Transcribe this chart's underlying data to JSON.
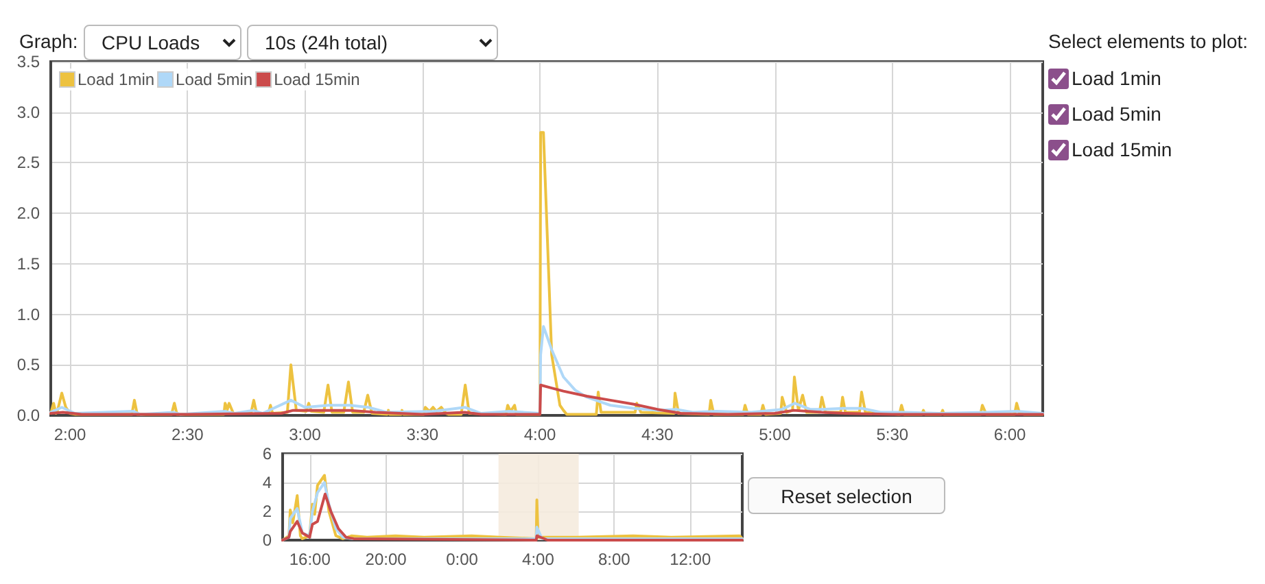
{
  "chart_data": [
    {
      "type": "line",
      "legend": "top left",
      "grid": true,
      "marker": "none",
      "xlim": [
        1.918,
        6.14
      ],
      "xticks": [
        {
          "value": 2,
          "label": "2:00"
        },
        {
          "value": 2.5,
          "label": "2:30"
        },
        {
          "value": 3,
          "label": "3:00"
        },
        {
          "value": 3.5,
          "label": "3:30"
        },
        {
          "value": 4,
          "label": "4:00"
        },
        {
          "value": 4.5,
          "label": "4:30"
        },
        {
          "value": 5,
          "label": "5:00"
        },
        {
          "value": 5.5,
          "label": "5:30"
        },
        {
          "value": 6,
          "label": "6:00"
        }
      ],
      "ylim": [
        0,
        3.5
      ],
      "yticks": [
        {
          "value": 0,
          "label": "0.0"
        },
        0.5,
        {
          "value": 1,
          "label": "1.0"
        },
        1.5,
        {
          "value": 2,
          "label": "2.0"
        },
        2.5,
        {
          "value": 3,
          "label": "3.0"
        },
        3.5
      ],
      "series": [
        {
          "name": "Load 1min",
          "color": "#edc240",
          "x": [
            1.918,
            1.93,
            1.94,
            1.947,
            1.965,
            1.982,
            2.0,
            2.023,
            2.263,
            2.274,
            2.286,
            2.432,
            2.444,
            2.455,
            2.655,
            2.66,
            2.67,
            2.677,
            2.695,
            2.77,
            2.782,
            2.794,
            2.845,
            2.853,
            2.862,
            2.925,
            2.94,
            2.963,
            3.005,
            3.016,
            3.027,
            3.08,
            3.098,
            3.115,
            3.165,
            3.185,
            3.203,
            3.25,
            3.267,
            3.285,
            3.35,
            3.355,
            3.36,
            3.41,
            3.413,
            3.42,
            3.505,
            3.512,
            3.53,
            3.545,
            3.559,
            3.58,
            3.6,
            3.612,
            3.665,
            3.682,
            3.699,
            3.855,
            3.863,
            3.875,
            3.892,
            3.9,
            4.0,
            4.003,
            4.015,
            4.05,
            4.085,
            4.1,
            4.114,
            4.24,
            4.248,
            4.26,
            4.405,
            4.412,
            4.43,
            4.57,
            4.575,
            4.59,
            4.72,
            4.727,
            4.74,
            4.865,
            4.873,
            4.885,
            4.94,
            4.949,
            4.96,
            5.025,
            5.031,
            5.05,
            5.075,
            5.083,
            5.1,
            5.118,
            5.135,
            5.19,
            5.2,
            5.215,
            5.28,
            5.288,
            5.3,
            5.36,
            5.369,
            5.385,
            5.53,
            5.539,
            5.55,
            5.625,
            5.632,
            5.64,
            5.707,
            5.714,
            5.72,
            5.875,
            5.883,
            5.9,
            6.02,
            6.029,
            6.04,
            6.06,
            6.14
          ],
          "values": [
            0.02,
            0.12,
            0.02,
            0.05,
            0.22,
            0.08,
            0.02,
            0.01,
            0.01,
            0.15,
            0.01,
            0.01,
            0.12,
            0.01,
            0.01,
            0.12,
            0.06,
            0.12,
            0.02,
            0.02,
            0.15,
            0.02,
            0.02,
            0.1,
            0.02,
            0.03,
            0.5,
            0.05,
            0.04,
            0.12,
            0.04,
            0.03,
            0.3,
            0.03,
            0.03,
            0.33,
            0.03,
            0.03,
            0.2,
            0.02,
            0.01,
            0.05,
            0.01,
            0.01,
            0.05,
            0.01,
            0.01,
            0.08,
            0.04,
            0.08,
            0.04,
            0.08,
            0.02,
            0.01,
            0.01,
            0.3,
            0.02,
            0.01,
            0.1,
            0.04,
            0.1,
            0.01,
            0.01,
            2.8,
            2.8,
            0.6,
            0.1,
            0.05,
            0.01,
            0.01,
            0.23,
            0.03,
            0.03,
            0.12,
            0.03,
            0.02,
            0.22,
            0.02,
            0.01,
            0.15,
            0.01,
            0.01,
            0.1,
            0.01,
            0.01,
            0.1,
            0.01,
            0.02,
            0.18,
            0.03,
            0.05,
            0.38,
            0.05,
            0.2,
            0.03,
            0.03,
            0.18,
            0.03,
            0.03,
            0.18,
            0.03,
            0.03,
            0.23,
            0.03,
            0.01,
            0.1,
            0.01,
            0.01,
            0.05,
            0.01,
            0.01,
            0.05,
            0.01,
            0.01,
            0.1,
            0.01,
            0.01,
            0.12,
            0.03,
            0.01,
            0.01
          ]
        },
        {
          "name": "Load 5min",
          "color": "#afd8f8",
          "x": [
            1.918,
            1.965,
            2.02,
            2.27,
            2.3,
            2.44,
            2.47,
            2.66,
            2.7,
            2.78,
            2.82,
            2.94,
            3.0,
            3.1,
            3.19,
            3.27,
            3.35,
            3.55,
            3.68,
            3.75,
            3.87,
            4.0,
            4.003,
            4.015,
            4.05,
            4.1,
            4.15,
            4.2,
            4.25,
            4.3,
            4.4,
            4.5,
            4.58,
            4.65,
            4.75,
            4.9,
            5.03,
            5.085,
            5.15,
            5.2,
            5.29,
            5.37,
            5.45,
            5.55,
            5.7,
            5.9,
            6.03,
            6.14
          ],
          "values": [
            0.03,
            0.08,
            0.02,
            0.04,
            0.01,
            0.03,
            0.01,
            0.04,
            0.02,
            0.05,
            0.02,
            0.15,
            0.08,
            0.1,
            0.1,
            0.08,
            0.03,
            0.04,
            0.08,
            0.02,
            0.04,
            0.02,
            0.6,
            0.88,
            0.65,
            0.38,
            0.25,
            0.18,
            0.14,
            0.1,
            0.07,
            0.05,
            0.06,
            0.03,
            0.04,
            0.03,
            0.06,
            0.12,
            0.06,
            0.06,
            0.07,
            0.07,
            0.03,
            0.03,
            0.02,
            0.03,
            0.04,
            0.02
          ]
        },
        {
          "name": "Load 15min",
          "color": "#cb4b4b",
          "x": [
            1.918,
            1.97,
            2.05,
            2.5,
            2.9,
            2.95,
            3.1,
            3.19,
            3.3,
            3.5,
            3.68,
            3.75,
            4.0,
            4.003,
            4.05,
            4.1,
            4.2,
            4.3,
            4.4,
            4.5,
            4.6,
            4.8,
            5.0,
            5.08,
            5.2,
            5.3,
            5.5,
            6.14
          ],
          "values": [
            0.02,
            0.03,
            0.01,
            0.01,
            0.02,
            0.05,
            0.05,
            0.05,
            0.03,
            0.01,
            0.03,
            0.01,
            0.01,
            0.3,
            0.27,
            0.24,
            0.19,
            0.15,
            0.11,
            0.06,
            0.02,
            0.01,
            0.02,
            0.05,
            0.03,
            0.02,
            0.01,
            0.01
          ]
        }
      ]
    },
    {
      "type": "line",
      "legend": false,
      "grid": true,
      "marker": "none",
      "xlim": [
        "--01-01T14:34",
        "--01-02T14:44"
      ],
      "xticks": [
        {
          "value": "--01-01T16:00",
          "label": "16:00"
        },
        {
          "value": "--01-01T20:00",
          "label": "20:00"
        },
        {
          "value": "--01-02T00:00",
          "label": "0:00"
        },
        {
          "value": "--01-02T04:00",
          "label": "4:00"
        },
        {
          "value": "--01-02T08:00",
          "label": "8:00"
        },
        {
          "value": "--01-02T12:00",
          "label": "12:00"
        }
      ],
      "ylim": [
        0,
        6
      ],
      "yticks": [
        0,
        2,
        4,
        6
      ],
      "bands": [
        {
          "axis": "x",
          "from": "--01-02T01:55",
          "to": "--01-02T06:08",
          "color": "#f5ebde"
        }
      ],
      "series": [
        {
          "color": "#edc240",
          "x": [
            "--01-01T14:34",
            "--01-01T14:54",
            "--01-01T14:58",
            "--01-01T15:06",
            "--01-01T15:20",
            "--01-01T15:30",
            "--01-01T15:36",
            "--01-01T15:59",
            "--01-01T16:08",
            "--01-01T16:15",
            "--01-01T16:24",
            "--01-01T16:46",
            "--01-01T17:00",
            "--01-01T17:22",
            "--01-01T17:44",
            "--01-01T18:12",
            "--01-01T19:00",
            "--01-01T20:30",
            "--01-01T22:00",
            "--01-02T00:30",
            "--01-02T02:00",
            "--01-02T03:54",
            "--01-02T03:56",
            "--01-02T04:00",
            "--01-02T06:00",
            "--01-02T09:00",
            "--01-02T11:00",
            "--01-02T14:36",
            "--01-02T14:44"
          ],
          "values": [
            0,
            0.3,
            2.1,
            1.2,
            3.1,
            0.3,
            0.1,
            0.3,
            2.5,
            1.8,
            3.8,
            4.5,
            2,
            0.3,
            0.1,
            0.3,
            0.2,
            0.3,
            0.2,
            0.3,
            0.2,
            0.1,
            2.8,
            0.2,
            0.2,
            0.3,
            0.2,
            0.3,
            0.1
          ]
        },
        {
          "color": "#afd8f8",
          "x": [
            "--01-01T14:34",
            "--01-01T14:54",
            "--01-01T14:58",
            "--01-01T15:20",
            "--01-01T15:36",
            "--01-01T15:59",
            "--01-01T16:08",
            "--01-01T16:24",
            "--01-01T16:46",
            "--01-01T17:00",
            "--01-01T17:22",
            "--01-01T17:44",
            "--01-01T18:12",
            "--01-02T00:00",
            "--01-02T03:54",
            "--01-02T03:56",
            "--01-02T04:12",
            "--01-02T14:44"
          ],
          "values": [
            0,
            0.2,
            1.5,
            2.2,
            0.5,
            0.3,
            2,
            3.3,
            4,
            2.5,
            0.8,
            0.2,
            0.1,
            0.1,
            0.1,
            0.9,
            0.1,
            0.1
          ]
        },
        {
          "color": "#cb4b4b",
          "x": [
            "--01-01T14:34",
            "--01-01T14:54",
            "--01-01T14:58",
            "--01-01T15:20",
            "--01-01T15:36",
            "--01-01T15:59",
            "--01-01T16:08",
            "--01-01T16:24",
            "--01-01T16:48",
            "--01-01T17:06",
            "--01-01T17:30",
            "--01-01T17:54",
            "--01-01T18:18",
            "--01-02T03:54",
            "--01-02T03:56",
            "--01-02T04:30",
            "--01-02T14:44"
          ],
          "values": [
            0,
            0.2,
            0.6,
            1.3,
            0.5,
            0.2,
            1.1,
            1.3,
            3.2,
            2,
            0.8,
            0.2,
            0.1,
            0,
            0.3,
            0,
            0
          ]
        }
      ]
    },
    {
      "type": "other",
      "annotations": [
        "Graph:",
        "CPU Loads",
        "10s (24h total)",
        "Select elements to plot:",
        "Load 1min",
        "Load 5min",
        "Load 15min",
        "Reset selection"
      ]
    }
  ]
}
